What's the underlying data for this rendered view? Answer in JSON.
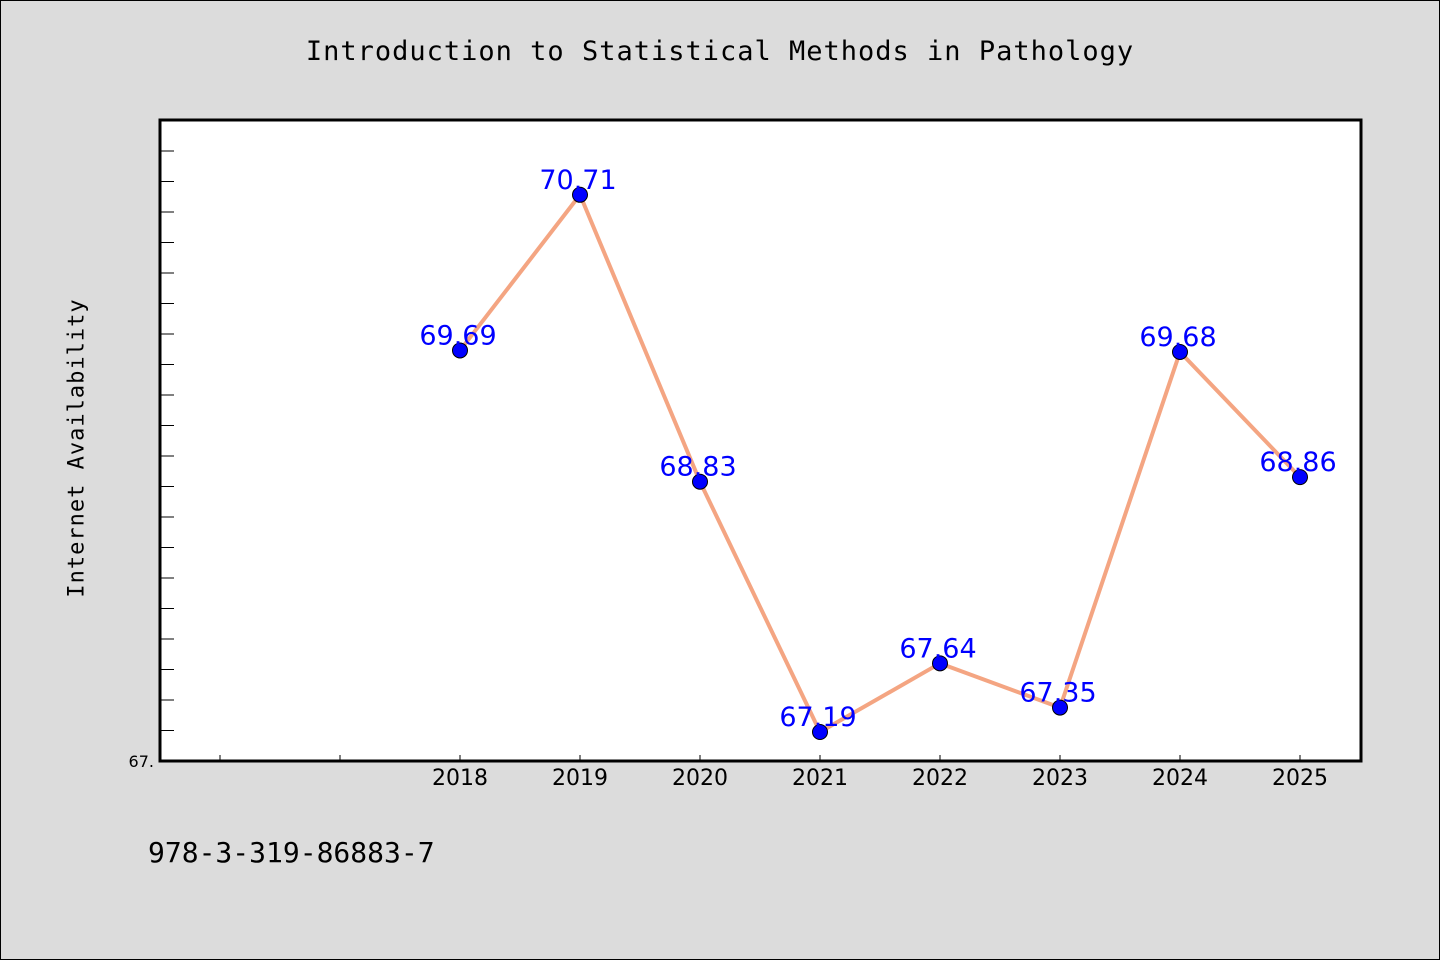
{
  "title": "Introduction to Statistical Methods in Pathology",
  "footer_text": "978-3-319-86883-7",
  "colors": {
    "background": "#dcdcdc",
    "plot_background": "#ffffff",
    "line": "#f4a582",
    "marker": "#0000ff",
    "data_label": "#0000ff"
  },
  "chart_data": {
    "type": "line",
    "title": "Introduction to Statistical Methods in Pathology",
    "xlabel": "",
    "ylabel": "Internet Availability",
    "x": [
      "2018",
      "2019",
      "2020",
      "2021",
      "2022",
      "2023",
      "2024",
      "2025"
    ],
    "series": [
      {
        "values": [
          69.69,
          70.71,
          68.83,
          67.19,
          67.64,
          67.35,
          69.68,
          68.86
        ],
        "data_labels": [
          "69.69",
          "70.71",
          "68.83",
          "67.19",
          "67.64",
          "67.35",
          "69.68",
          "68.86"
        ]
      }
    ],
    "xlim_categories_offset": 2.5,
    "ylim": [
      67.0,
      71.2
    ],
    "ytick_label": "67.",
    "grid": false,
    "legend": "none"
  }
}
